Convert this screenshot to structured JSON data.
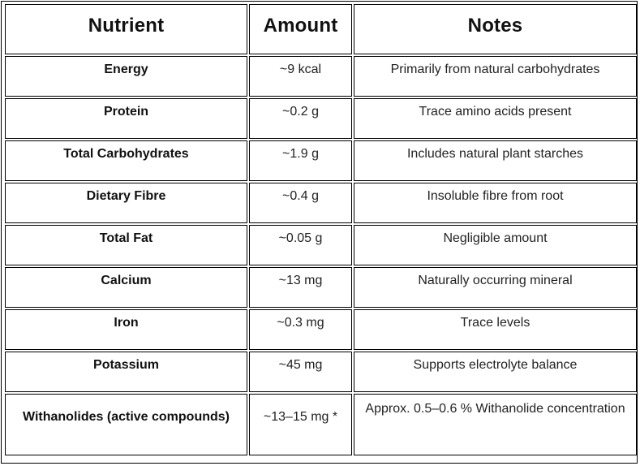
{
  "table": {
    "headers": {
      "nutrient": "Nutrient",
      "amount": "Amount",
      "notes": "Notes"
    },
    "rows": [
      {
        "nutrient": "Energy",
        "amount": "~9 kcal",
        "notes": "Primarily from natural carbohydrates"
      },
      {
        "nutrient": "Protein",
        "amount": "~0.2 g",
        "notes": "Trace amino acids present"
      },
      {
        "nutrient": "Total Carbohydrates",
        "amount": "~1.9 g",
        "notes": "Includes natural plant starches"
      },
      {
        "nutrient": "Dietary Fibre",
        "amount": "~0.4 g",
        "notes": "Insoluble fibre from root"
      },
      {
        "nutrient": "Total Fat",
        "amount": "~0.05 g",
        "notes": "Negligible amount"
      },
      {
        "nutrient": "Calcium",
        "amount": "~13 mg",
        "notes": "Naturally occurring mineral"
      },
      {
        "nutrient": "Iron",
        "amount": "~0.3 mg",
        "notes": "Trace levels"
      },
      {
        "nutrient": "Potassium",
        "amount": "~45 mg",
        "notes": "Supports electrolyte balance"
      },
      {
        "nutrient": "Withanolides (active compounds)",
        "amount": "~13–15 mg *",
        "notes": "Approx. 0.5–0.6 % Withanolide concentration"
      }
    ]
  }
}
